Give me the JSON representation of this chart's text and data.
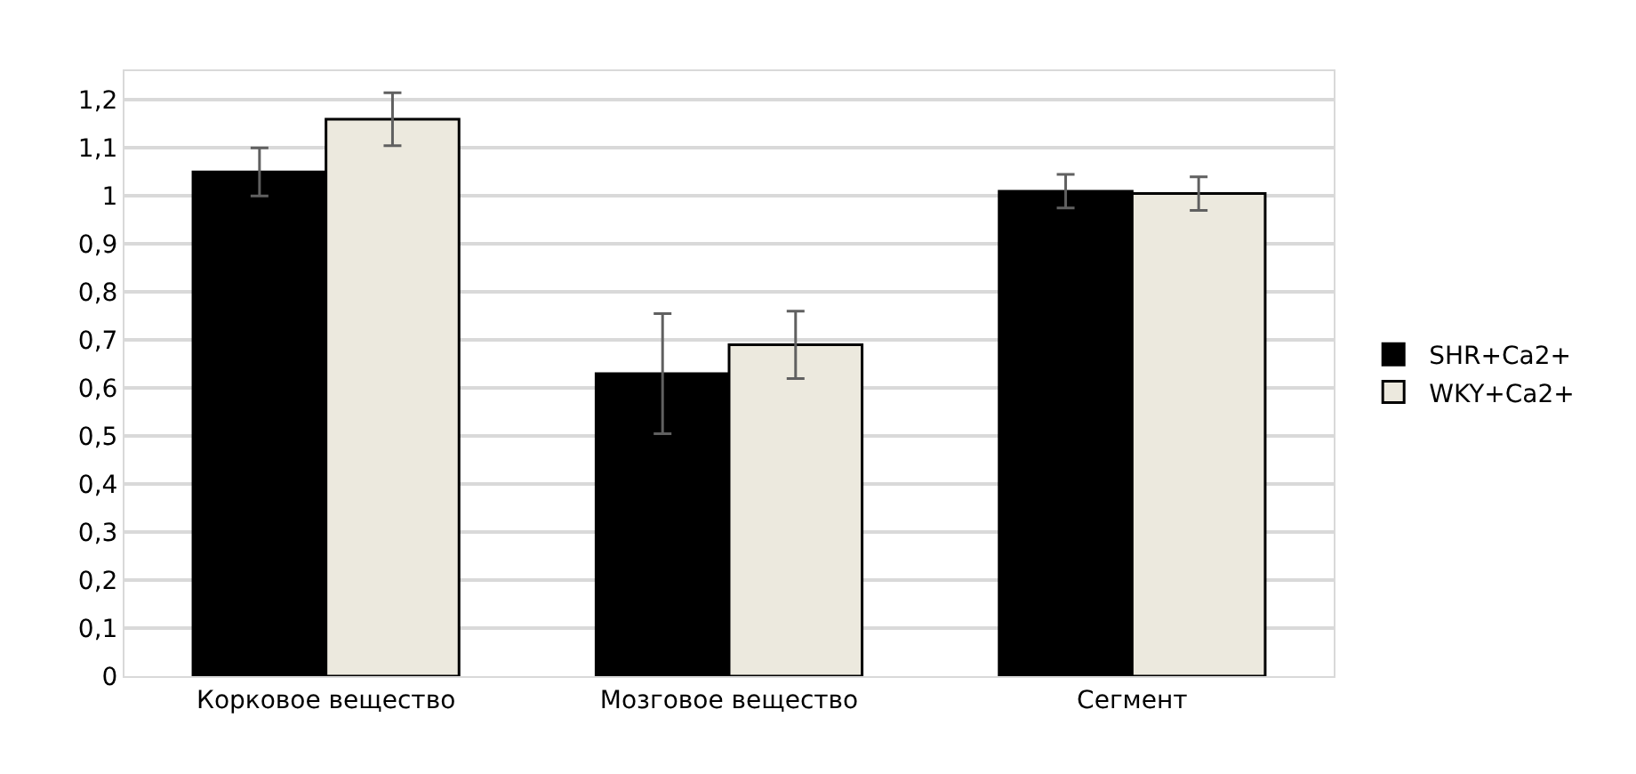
{
  "chart_data": {
    "type": "bar",
    "categories": [
      "Корковое вещество",
      "Мозговое вещество",
      "Сегмент"
    ],
    "series": [
      {
        "name": "SHR+Ca2+",
        "color": "#000000",
        "values": [
          1.05,
          0.63,
          1.01
        ],
        "errors": [
          0.05,
          0.125,
          0.035
        ]
      },
      {
        "name": "WKY+Ca2+",
        "color": "#ece9de",
        "values": [
          1.16,
          0.69,
          1.005
        ],
        "errors": [
          0.055,
          0.07,
          0.035
        ]
      }
    ],
    "ylim": [
      0,
      1.26
    ],
    "yticks": [
      0,
      {
        "value": 0.1,
        "label": "0,1"
      },
      {
        "value": 0.2,
        "label": "0,2"
      },
      {
        "value": 0.3,
        "label": "0,3"
      },
      {
        "value": 0.4,
        "label": "0,4"
      },
      {
        "value": 0.5,
        "label": "0,5"
      },
      {
        "value": 0.6,
        "label": "0,6"
      },
      {
        "value": 0.7,
        "label": "0,7"
      },
      {
        "value": 0.8,
        "label": "0,8"
      },
      {
        "value": 0.9,
        "label": "0,9"
      },
      1,
      {
        "value": 1.1,
        "label": "1,1"
      },
      {
        "value": 1.2,
        "label": "1,2"
      }
    ],
    "grid": "y",
    "legend": "right"
  }
}
